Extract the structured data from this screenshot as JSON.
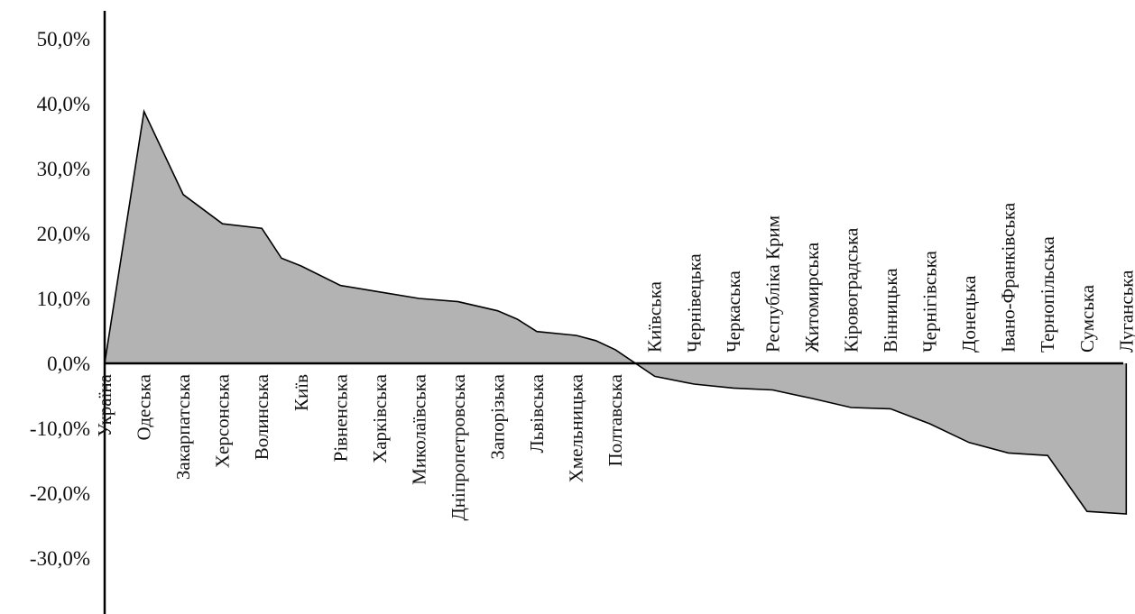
{
  "chart_data": {
    "type": "area",
    "title": "",
    "xlabel": "",
    "ylabel": "",
    "ylim": [
      -40,
      55
    ],
    "y_ticks": [
      50,
      40,
      30,
      20,
      10,
      0,
      -10,
      -20,
      -30
    ],
    "y_tick_labels": [
      "50,0%",
      "40,0%",
      "30,0%",
      "20,0%",
      "10,0%",
      "0,0%",
      "-10,0%",
      "-20,0%",
      "-30,0%"
    ],
    "fill_color": "#b3b3b3",
    "line_color": "#000000",
    "grid": false,
    "categories": [
      "Україна",
      "Одеська",
      "Закарпатська",
      "Херсонська",
      "Волинська",
      "Київ",
      "Рівненська",
      "Харківська",
      "Миколаївська",
      "Дніпропетровська",
      "Запорізька",
      "Львівська",
      "Хмельницька",
      "Полтавська",
      "Київська",
      "Чернівецька",
      "Черкаська",
      "Республіка Крим",
      "Житомирська",
      "Кіровоградська",
      "Вінницька",
      "Чернігівська",
      "Донецька",
      "Івано-Франківська",
      "Тернопільська",
      "Сумська",
      "Луганська"
    ],
    "series": [
      {
        "x": [
          0,
          1,
          2,
          3,
          4,
          4.5,
          5,
          6,
          7,
          8,
          9,
          10,
          10.5,
          11,
          12,
          12.5,
          13,
          14,
          15,
          16,
          17,
          18,
          19,
          20,
          21,
          22,
          23,
          23.5,
          24,
          25,
          26
        ],
        "values": [
          0.0,
          38.8,
          26.0,
          21.5,
          20.8,
          16.2,
          15.0,
          12.0,
          11.0,
          10.0,
          9.5,
          8.1,
          6.8,
          4.9,
          4.3,
          3.5,
          2.1,
          -2.0,
          -3.2,
          -3.8,
          -4.1,
          -5.4,
          -6.8,
          -7.0,
          -9.3,
          -12.2,
          -13.8,
          -14.0,
          -14.2,
          -22.8,
          -23.2
        ]
      }
    ]
  }
}
